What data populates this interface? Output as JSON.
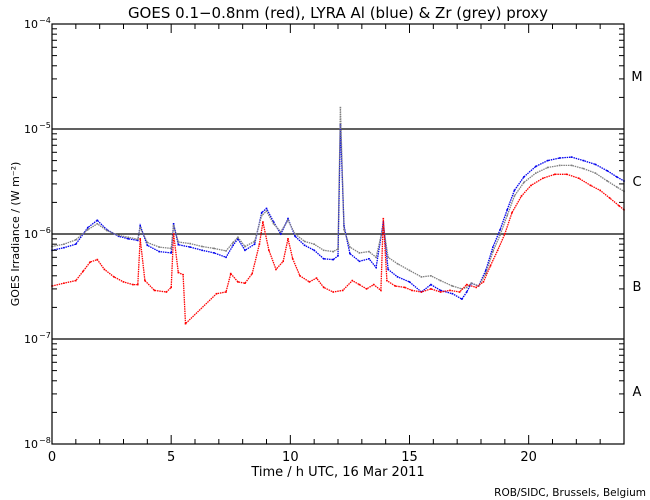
{
  "chart_data": {
    "type": "line",
    "title": "GOES 0.1−0.8nm (red), LYRA Al (blue) & Zr (grey) proxy",
    "xlabel": "Time / h UTC, 16 Mar 2011",
    "ylabel": "GOES Irradiance / (W m⁻²)",
    "xlim": [
      0,
      24
    ],
    "ylim": [
      1e-08,
      0.0001
    ],
    "yscale": "log",
    "x_ticks": [
      0,
      5,
      10,
      15,
      20
    ],
    "x_tick_labels": [
      "0",
      "5",
      "10",
      "15",
      "20"
    ],
    "y_ticks": [
      1e-08,
      1e-07,
      1e-06,
      1e-05,
      0.0001
    ],
    "y_tick_labels": [
      {
        "base": "10",
        "exp": "−8"
      },
      {
        "base": "10",
        "exp": "−7"
      },
      {
        "base": "10",
        "exp": "−6"
      },
      {
        "base": "10",
        "exp": "−5"
      },
      {
        "base": "10",
        "exp": "−4"
      }
    ],
    "reference_lines": [
      1e-07,
      1e-06,
      1e-05
    ],
    "flare_classes": [
      {
        "label": "A",
        "y": 3.2e-08
      },
      {
        "label": "B",
        "y": 3.2e-07
      },
      {
        "label": "C",
        "y": 3.2e-06
      },
      {
        "label": "M",
        "y": 3.2e-05
      }
    ],
    "credit": "ROB/SIDC, Brussels, Belgium",
    "series": [
      {
        "name": "LYRA Al proxy",
        "color": "#0000ee",
        "points": [
          [
            0,
            7e-07
          ],
          [
            0.5,
            7.4e-07
          ],
          [
            1.0,
            8e-07
          ],
          [
            1.5,
            1.15e-06
          ],
          [
            1.9,
            1.35e-06
          ],
          [
            2.3,
            1.1e-06
          ],
          [
            2.8,
            9.5e-07
          ],
          [
            3.2,
            9e-07
          ],
          [
            3.6,
            8.7e-07
          ],
          [
            3.7,
            1.2e-06
          ],
          [
            4.0,
            7.8e-07
          ],
          [
            4.5,
            6.8e-07
          ],
          [
            5.0,
            6.6e-07
          ],
          [
            5.1,
            1.25e-06
          ],
          [
            5.3,
            7.9e-07
          ],
          [
            5.8,
            7.5e-07
          ],
          [
            6.3,
            7e-07
          ],
          [
            6.8,
            6.6e-07
          ],
          [
            7.3,
            6e-07
          ],
          [
            7.6,
            7.8e-07
          ],
          [
            7.8,
            9e-07
          ],
          [
            8.1,
            7e-07
          ],
          [
            8.5,
            8e-07
          ],
          [
            8.8,
            1.6e-06
          ],
          [
            9.0,
            1.75e-06
          ],
          [
            9.3,
            1.3e-06
          ],
          [
            9.6,
            1e-06
          ],
          [
            9.9,
            1.4e-06
          ],
          [
            10.2,
            9.5e-07
          ],
          [
            10.6,
            7.8e-07
          ],
          [
            11.0,
            7e-07
          ],
          [
            11.4,
            5.8e-07
          ],
          [
            11.8,
            5.7e-07
          ],
          [
            12.0,
            6.2e-07
          ],
          [
            12.1,
            1.1e-05
          ],
          [
            12.25,
            1.2e-06
          ],
          [
            12.5,
            6.5e-07
          ],
          [
            12.9,
            5.5e-07
          ],
          [
            13.3,
            5.8e-07
          ],
          [
            13.6,
            4.8e-07
          ],
          [
            13.9,
            1.3e-06
          ],
          [
            14.1,
            4.6e-07
          ],
          [
            14.5,
            3.9e-07
          ],
          [
            15.0,
            3.5e-07
          ],
          [
            15.5,
            2.8e-07
          ],
          [
            15.9,
            3.3e-07
          ],
          [
            16.3,
            2.9e-07
          ],
          [
            16.8,
            2.7e-07
          ],
          [
            17.2,
            2.4e-07
          ],
          [
            17.4,
            2.8e-07
          ],
          [
            17.6,
            3.4e-07
          ],
          [
            17.9,
            3.2e-07
          ],
          [
            18.2,
            4.5e-07
          ],
          [
            18.5,
            7.5e-07
          ],
          [
            18.8,
            1.1e-06
          ],
          [
            19.1,
            1.7e-06
          ],
          [
            19.4,
            2.6e-06
          ],
          [
            19.8,
            3.5e-06
          ],
          [
            20.3,
            4.4e-06
          ],
          [
            20.8,
            5e-06
          ],
          [
            21.3,
            5.3e-06
          ],
          [
            21.8,
            5.4e-06
          ],
          [
            22.3,
            5e-06
          ],
          [
            22.8,
            4.6e-06
          ],
          [
            23.3,
            4e-06
          ],
          [
            23.7,
            3.5e-06
          ],
          [
            24,
            3.2e-06
          ]
        ]
      },
      {
        "name": "LYRA Zr proxy",
        "color": "#808080",
        "points": [
          [
            0,
            7.6e-07
          ],
          [
            0.5,
            8e-07
          ],
          [
            1.0,
            8.8e-07
          ],
          [
            1.5,
            1.1e-06
          ],
          [
            1.9,
            1.25e-06
          ],
          [
            2.3,
            1.08e-06
          ],
          [
            2.8,
            9.7e-07
          ],
          [
            3.2,
            9.3e-07
          ],
          [
            3.6,
            8.9e-07
          ],
          [
            3.7,
            1.15e-06
          ],
          [
            4.0,
            8.3e-07
          ],
          [
            4.5,
            7.5e-07
          ],
          [
            5.0,
            7.3e-07
          ],
          [
            5.1,
            1.2e-06
          ],
          [
            5.3,
            8.4e-07
          ],
          [
            5.8,
            8.1e-07
          ],
          [
            6.3,
            7.6e-07
          ],
          [
            6.8,
            7.3e-07
          ],
          [
            7.3,
            6.9e-07
          ],
          [
            7.6,
            8.3e-07
          ],
          [
            7.8,
            9.3e-07
          ],
          [
            8.1,
            7.6e-07
          ],
          [
            8.5,
            8.5e-07
          ],
          [
            8.8,
            1.5e-06
          ],
          [
            9.0,
            1.65e-06
          ],
          [
            9.3,
            1.25e-06
          ],
          [
            9.6,
            1.05e-06
          ],
          [
            9.9,
            1.35e-06
          ],
          [
            10.2,
            1e-06
          ],
          [
            10.6,
            8.5e-07
          ],
          [
            11.0,
            8e-07
          ],
          [
            11.4,
            7e-07
          ],
          [
            11.8,
            6.8e-07
          ],
          [
            12.0,
            7.2e-07
          ],
          [
            12.1,
            1.6e-05
          ],
          [
            12.25,
            1.1e-06
          ],
          [
            12.5,
            7.5e-07
          ],
          [
            12.9,
            6.6e-07
          ],
          [
            13.3,
            6.8e-07
          ],
          [
            13.6,
            6e-07
          ],
          [
            13.9,
            1.2e-06
          ],
          [
            14.1,
            6e-07
          ],
          [
            14.5,
            5.2e-07
          ],
          [
            15.0,
            4.5e-07
          ],
          [
            15.5,
            3.9e-07
          ],
          [
            15.9,
            4e-07
          ],
          [
            16.3,
            3.6e-07
          ],
          [
            16.8,
            3.2e-07
          ],
          [
            17.2,
            3e-07
          ],
          [
            17.4,
            3.1e-07
          ],
          [
            17.6,
            3.4e-07
          ],
          [
            17.9,
            3.2e-07
          ],
          [
            18.2,
            4.2e-07
          ],
          [
            18.5,
            6.8e-07
          ],
          [
            18.8,
            9.8e-07
          ],
          [
            19.1,
            1.5e-06
          ],
          [
            19.4,
            2.3e-06
          ],
          [
            19.8,
            3.1e-06
          ],
          [
            20.3,
            3.8e-06
          ],
          [
            20.8,
            4.3e-06
          ],
          [
            21.3,
            4.5e-06
          ],
          [
            21.8,
            4.5e-06
          ],
          [
            22.3,
            4.2e-06
          ],
          [
            22.8,
            3.8e-06
          ],
          [
            23.3,
            3.2e-06
          ],
          [
            23.7,
            2.8e-06
          ],
          [
            24,
            2.55e-06
          ]
        ]
      },
      {
        "name": "GOES 0.1-0.8nm",
        "color": "#ff0000",
        "points": [
          [
            0,
            3.2e-07
          ],
          [
            0.5,
            3.4e-07
          ],
          [
            1.0,
            3.6e-07
          ],
          [
            1.3,
            4.4e-07
          ],
          [
            1.6,
            5.4e-07
          ],
          [
            1.9,
            5.7e-07
          ],
          [
            2.2,
            4.6e-07
          ],
          [
            2.6,
            3.9e-07
          ],
          [
            3.0,
            3.5e-07
          ],
          [
            3.4,
            3.3e-07
          ],
          [
            3.6,
            3.3e-07
          ],
          [
            3.7,
            9e-07
          ],
          [
            3.9,
            3.6e-07
          ],
          [
            4.3,
            2.9e-07
          ],
          [
            4.8,
            2.8e-07
          ],
          [
            5.0,
            3.1e-07
          ],
          [
            5.1,
            1e-06
          ],
          [
            5.3,
            4.3e-07
          ],
          [
            5.5,
            4.1e-07
          ],
          [
            5.6,
            1.4e-07
          ],
          [
            6.9,
            2.7e-07
          ],
          [
            7.3,
            2.8e-07
          ],
          [
            7.5,
            4.2e-07
          ],
          [
            7.8,
            3.5e-07
          ],
          [
            8.1,
            3.4e-07
          ],
          [
            8.4,
            4.2e-07
          ],
          [
            8.7,
            8e-07
          ],
          [
            8.85,
            1.3e-06
          ],
          [
            9.1,
            7e-07
          ],
          [
            9.4,
            4.6e-07
          ],
          [
            9.7,
            5.5e-07
          ],
          [
            9.9,
            9e-07
          ],
          [
            10.1,
            5.8e-07
          ],
          [
            10.4,
            4e-07
          ],
          [
            10.8,
            3.5e-07
          ],
          [
            11.1,
            3.8e-07
          ],
          [
            11.4,
            3.1e-07
          ],
          [
            11.8,
            2.8e-07
          ],
          [
            12.2,
            2.9e-07
          ],
          [
            12.6,
            3.6e-07
          ],
          [
            12.9,
            3.3e-07
          ],
          [
            13.2,
            3e-07
          ],
          [
            13.5,
            3.3e-07
          ],
          [
            13.8,
            2.9e-07
          ],
          [
            13.9,
            1.4e-06
          ],
          [
            14.05,
            3.6e-07
          ],
          [
            14.4,
            3.2e-07
          ],
          [
            14.8,
            3.1e-07
          ],
          [
            15.1,
            2.9e-07
          ],
          [
            15.5,
            2.8e-07
          ],
          [
            15.9,
            3e-07
          ],
          [
            16.3,
            2.8e-07
          ],
          [
            16.7,
            2.9e-07
          ],
          [
            17.1,
            2.8e-07
          ],
          [
            17.4,
            3.3e-07
          ],
          [
            17.8,
            3.1e-07
          ],
          [
            18.1,
            3.5e-07
          ],
          [
            18.4,
            5e-07
          ],
          [
            18.7,
            7e-07
          ],
          [
            19.0,
            1e-06
          ],
          [
            19.3,
            1.6e-06
          ],
          [
            19.7,
            2.3e-06
          ],
          [
            20.1,
            2.9e-06
          ],
          [
            20.6,
            3.4e-06
          ],
          [
            21.1,
            3.7e-06
          ],
          [
            21.6,
            3.7e-06
          ],
          [
            22.1,
            3.4e-06
          ],
          [
            22.6,
            2.9e-06
          ],
          [
            23.0,
            2.6e-06
          ],
          [
            23.4,
            2.2e-06
          ],
          [
            23.8,
            1.85e-06
          ],
          [
            24,
            1.7e-06
          ]
        ]
      }
    ]
  }
}
